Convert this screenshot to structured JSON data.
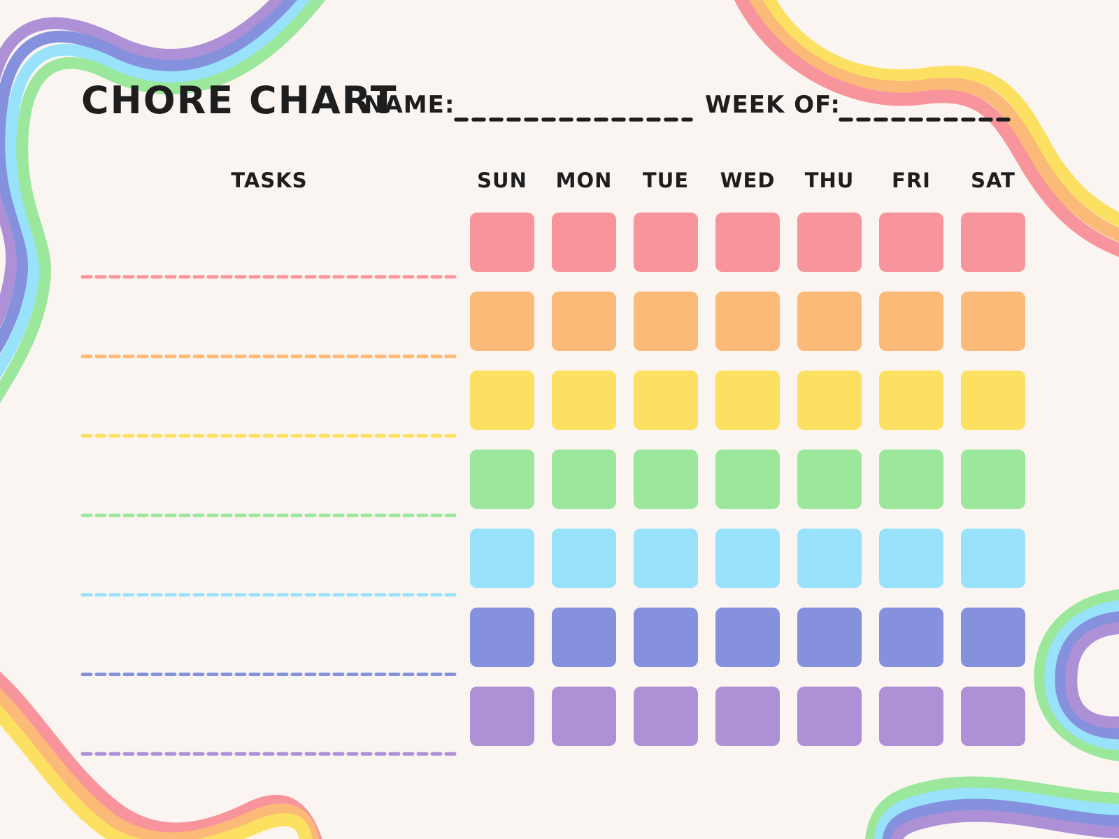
{
  "header": {
    "title": "CHORE CHART",
    "name_label": "NAME:",
    "name_value": "",
    "week_of_label": "WEEK OF:",
    "week_of_value": ""
  },
  "table": {
    "tasks_header": "TASKS",
    "days": [
      "SUN",
      "MON",
      "TUE",
      "WED",
      "THU",
      "FRI",
      "SAT"
    ],
    "rows": [
      {
        "task": "",
        "color": "#F8959C"
      },
      {
        "task": "",
        "color": "#FBBA77"
      },
      {
        "task": "",
        "color": "#FCE062"
      },
      {
        "task": "",
        "color": "#9BE79B"
      },
      {
        "task": "",
        "color": "#99E2FB"
      },
      {
        "task": "",
        "color": "#8591DD"
      },
      {
        "task": "",
        "color": "#AE90D6"
      }
    ]
  },
  "decorations": {
    "top_left_ribbon_colors": [
      "#AE90D6",
      "#8591DD",
      "#99E2FB",
      "#9BE79B"
    ],
    "top_right_ribbon_colors": [
      "#FCE062",
      "#FBBA77",
      "#F8959C"
    ],
    "bottom_left_ribbon_colors": [
      "#F8959C",
      "#FBBA77",
      "#FCE062"
    ],
    "bottom_right_ribbon_colors": [
      "#9BE79B",
      "#99E2FB",
      "#8591DD",
      "#AE90D6"
    ]
  },
  "palette": {
    "background": "#FBF5F2",
    "ink": "#1E1E1E"
  }
}
